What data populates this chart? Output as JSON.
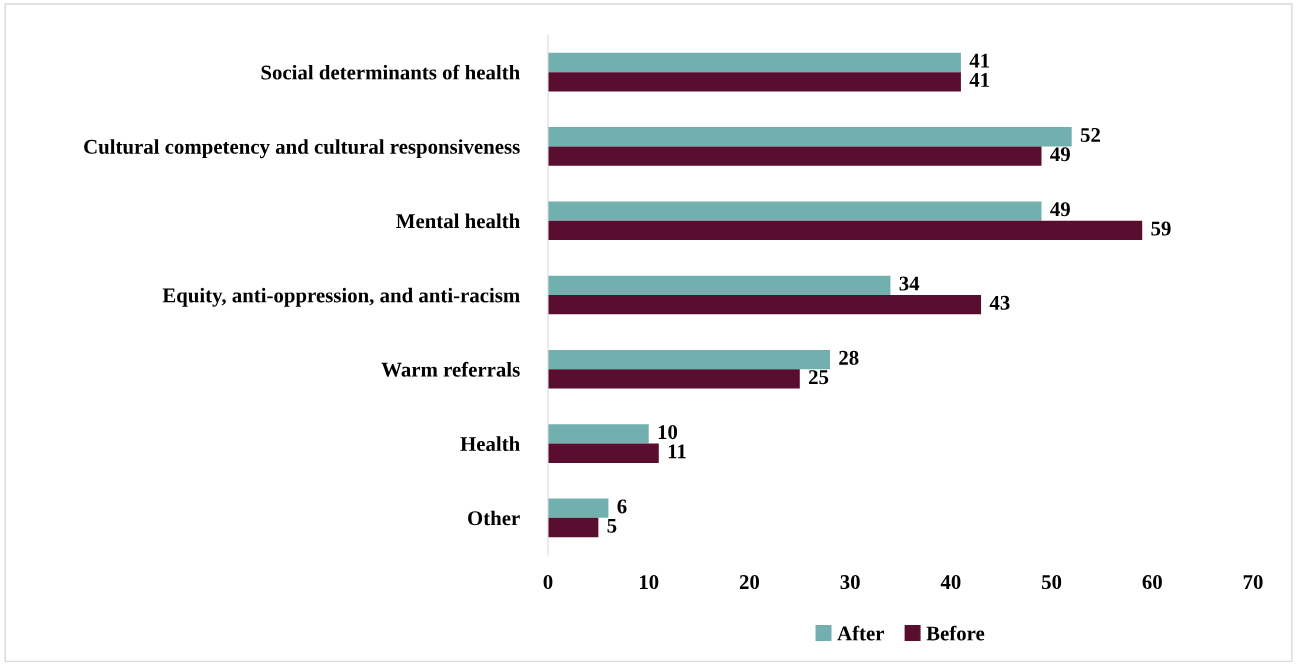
{
  "chart_data": {
    "type": "bar",
    "orientation": "horizontal",
    "categories": [
      "Social determinants of health",
      "Cultural competency and cultural responsiveness",
      "Mental health",
      "Equity, anti-oppression, and anti-racism",
      "Warm referrals",
      "Health",
      "Other"
    ],
    "series": [
      {
        "name": "After",
        "color": "#72afaf",
        "values": [
          41,
          52,
          49,
          34,
          28,
          10,
          6
        ]
      },
      {
        "name": "Before",
        "color": "#5a0e2f",
        "values": [
          41,
          49,
          59,
          43,
          25,
          11,
          5
        ]
      }
    ],
    "xlim": [
      0,
      70
    ],
    "xticks": [
      0,
      10,
      20,
      30,
      40,
      50,
      60,
      70
    ],
    "data_labels": true,
    "grid": false,
    "legend": "bottom"
  }
}
